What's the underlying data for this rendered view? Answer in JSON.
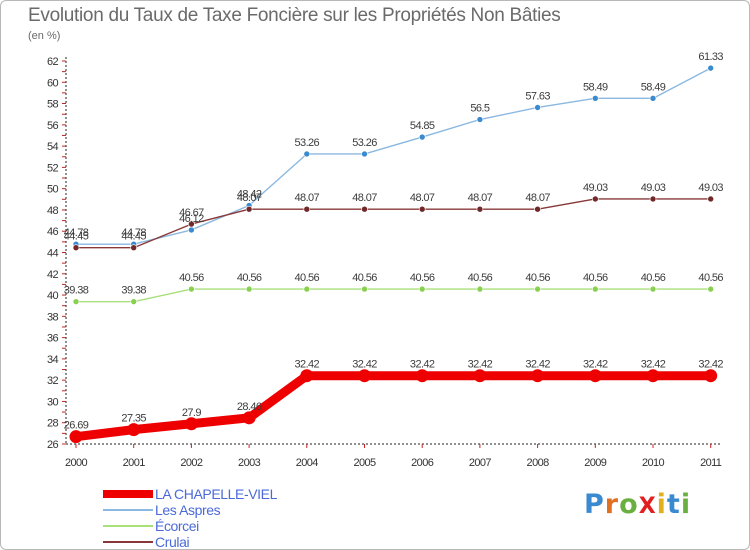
{
  "title": "Evolution du Taux de Taxe Foncière sur les Propriétés Non Bâties",
  "subtitle": "(en %)",
  "logo_text": "ProXiti",
  "chart_data": {
    "type": "line",
    "title": "Evolution du Taux de Taxe Foncière sur les Propriétés Non Bâties",
    "ylabel": "(en %)",
    "xlabel": "",
    "ylim": [
      26,
      62
    ],
    "y_ticks": [
      26,
      28,
      30,
      32,
      34,
      36,
      38,
      40,
      42,
      44,
      46,
      48,
      50,
      52,
      54,
      56,
      58,
      60,
      62
    ],
    "grid": false,
    "legend_position": "bottom-left",
    "categories": [
      "2000",
      "2001",
      "2002",
      "2003",
      "2004",
      "2005",
      "2006",
      "2007",
      "2008",
      "2009",
      "2010",
      "2011"
    ],
    "series": [
      {
        "name": "LA CHAPELLE-VIEL",
        "color": "#ee0000",
        "marker_color": "#ee0000",
        "width": "thick",
        "values": [
          26.69,
          27.35,
          27.9,
          28.46,
          32.42,
          32.42,
          32.42,
          32.42,
          32.42,
          32.42,
          32.42,
          32.42
        ],
        "labels": [
          "26.69",
          "27.35",
          "27.9",
          "28.46",
          "32.42",
          "32.42",
          "32.42",
          "32.42",
          "32.42",
          "32.42",
          "32.42",
          "32.42"
        ]
      },
      {
        "name": "Les Aspres",
        "color": "#8ab8e0",
        "marker_color": "#3a8ad0",
        "width": "thin",
        "values": [
          44.78,
          44.78,
          46.12,
          48.42,
          53.26,
          53.26,
          54.85,
          56.5,
          57.63,
          58.49,
          58.49,
          61.33
        ],
        "labels": [
          "44.78",
          "44.78",
          "46.12",
          "48.42",
          "53.26",
          "53.26",
          "54.85",
          "56.5",
          "57.63",
          "58.49",
          "58.49",
          "61.33"
        ]
      },
      {
        "name": "Écorcei",
        "color": "#a8e07a",
        "marker_color": "#88d050",
        "width": "thin",
        "values": [
          39.38,
          39.38,
          40.56,
          40.56,
          40.56,
          40.56,
          40.56,
          40.56,
          40.56,
          40.56,
          40.56,
          40.56
        ],
        "labels": [
          "39.38",
          "39.38",
          "40.56",
          "40.56",
          "40.56",
          "40.56",
          "40.56",
          "40.56",
          "40.56",
          "40.56",
          "40.56",
          "40.56"
        ]
      },
      {
        "name": "Crulai",
        "color": "#883838",
        "marker_color": "#702828",
        "width": "thin",
        "values": [
          44.45,
          44.45,
          46.67,
          48.07,
          48.07,
          48.07,
          48.07,
          48.07,
          48.07,
          49.03,
          49.03,
          49.03
        ],
        "labels": [
          "44.45",
          "44.45",
          "46.67",
          "48.07",
          "48.07",
          "48.07",
          "48.07",
          "48.07",
          "48.07",
          "49.03",
          "49.03",
          "49.03"
        ]
      }
    ]
  }
}
